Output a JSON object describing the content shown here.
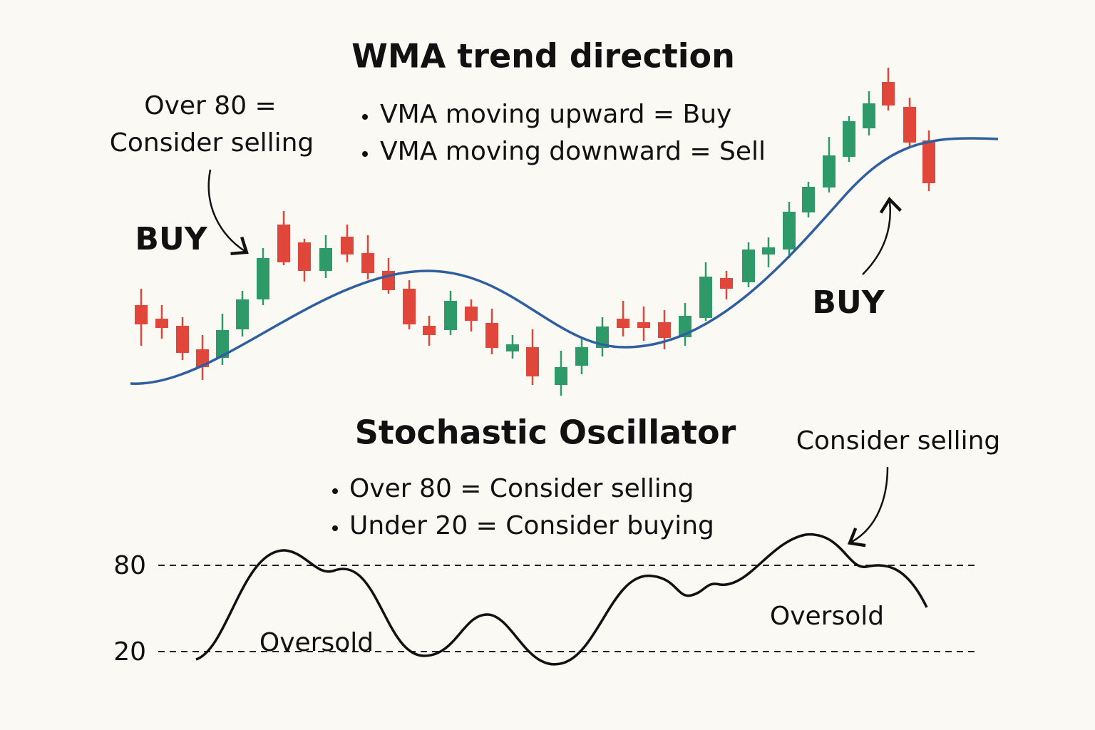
{
  "top": {
    "title": "WMA trend direction",
    "bullets": [
      "VMA moving upward = Buy",
      "VMA moving downward = Sell"
    ],
    "left_note": [
      "Over 80 =",
      "Consider selling"
    ],
    "buy_left": "BUY",
    "buy_right": "BUY"
  },
  "bottom": {
    "title": "Stochastic Oscillator",
    "bullets": [
      "Over 80 = Consider selling",
      "Under 20 = Consider buying"
    ],
    "levels": [
      "80",
      "20"
    ],
    "note_right": "Consider selling",
    "oversold_left": "Oversold",
    "oversold_right": "Oversold"
  }
}
